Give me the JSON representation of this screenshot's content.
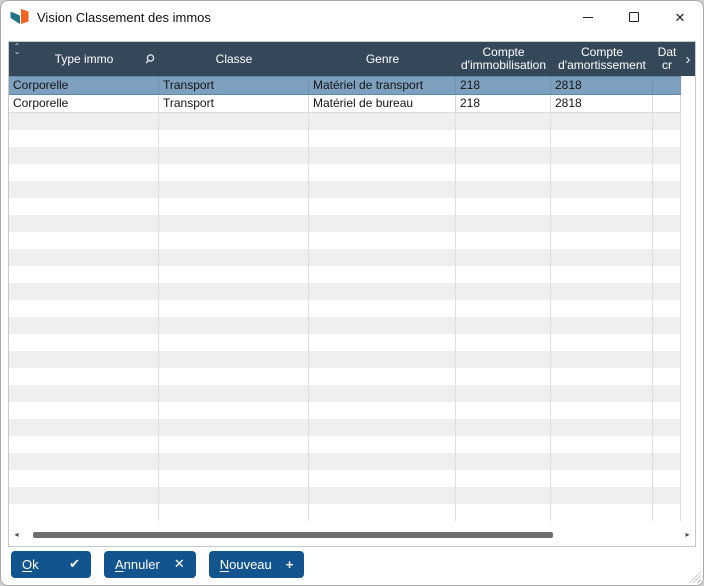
{
  "window": {
    "title": "Vision Classement des immos",
    "caption": {
      "close_glyph": "✕"
    }
  },
  "colors": {
    "header_bg": "#35485a",
    "selected_row_bg": "#7ea0bf",
    "button_bg": "#11548e",
    "stripe_gray": "#efefef",
    "logo_teal": "#1f7489",
    "logo_orange": "#f26322"
  },
  "grid": {
    "columns": [
      {
        "label": "Type immo",
        "has_search_icon": true
      },
      {
        "label": "Classe"
      },
      {
        "label": "Genre"
      },
      {
        "label": "Compte d'immobilisation"
      },
      {
        "label": "Compte d'amortissement"
      },
      {
        "label": "Dat cr",
        "truncated": true
      }
    ],
    "rows": [
      {
        "selected": true,
        "cells": [
          "Corporelle",
          "Transport",
          "Matériel de transport",
          "218",
          "2818",
          ""
        ]
      },
      {
        "selected": false,
        "cells": [
          "Corporelle",
          "Transport",
          "Matériel de bureau",
          "218",
          "2818",
          ""
        ]
      }
    ],
    "navigator_icon_top": "⌃",
    "navigator_icon_bottom": "⌄",
    "scroll_columns_right_glyph": "›",
    "hscroll_left_glyph": "◂",
    "hscroll_right_glyph": "▸"
  },
  "buttons": [
    {
      "accel": "O",
      "rest": "k",
      "icon": "check-icon",
      "icon_glyph": "✔"
    },
    {
      "accel": "A",
      "rest": "nnuler",
      "icon": "close-icon",
      "icon_glyph": "✕"
    },
    {
      "accel": "N",
      "rest": "ouveau",
      "icon": "plus-icon",
      "icon_glyph": "+"
    }
  ]
}
